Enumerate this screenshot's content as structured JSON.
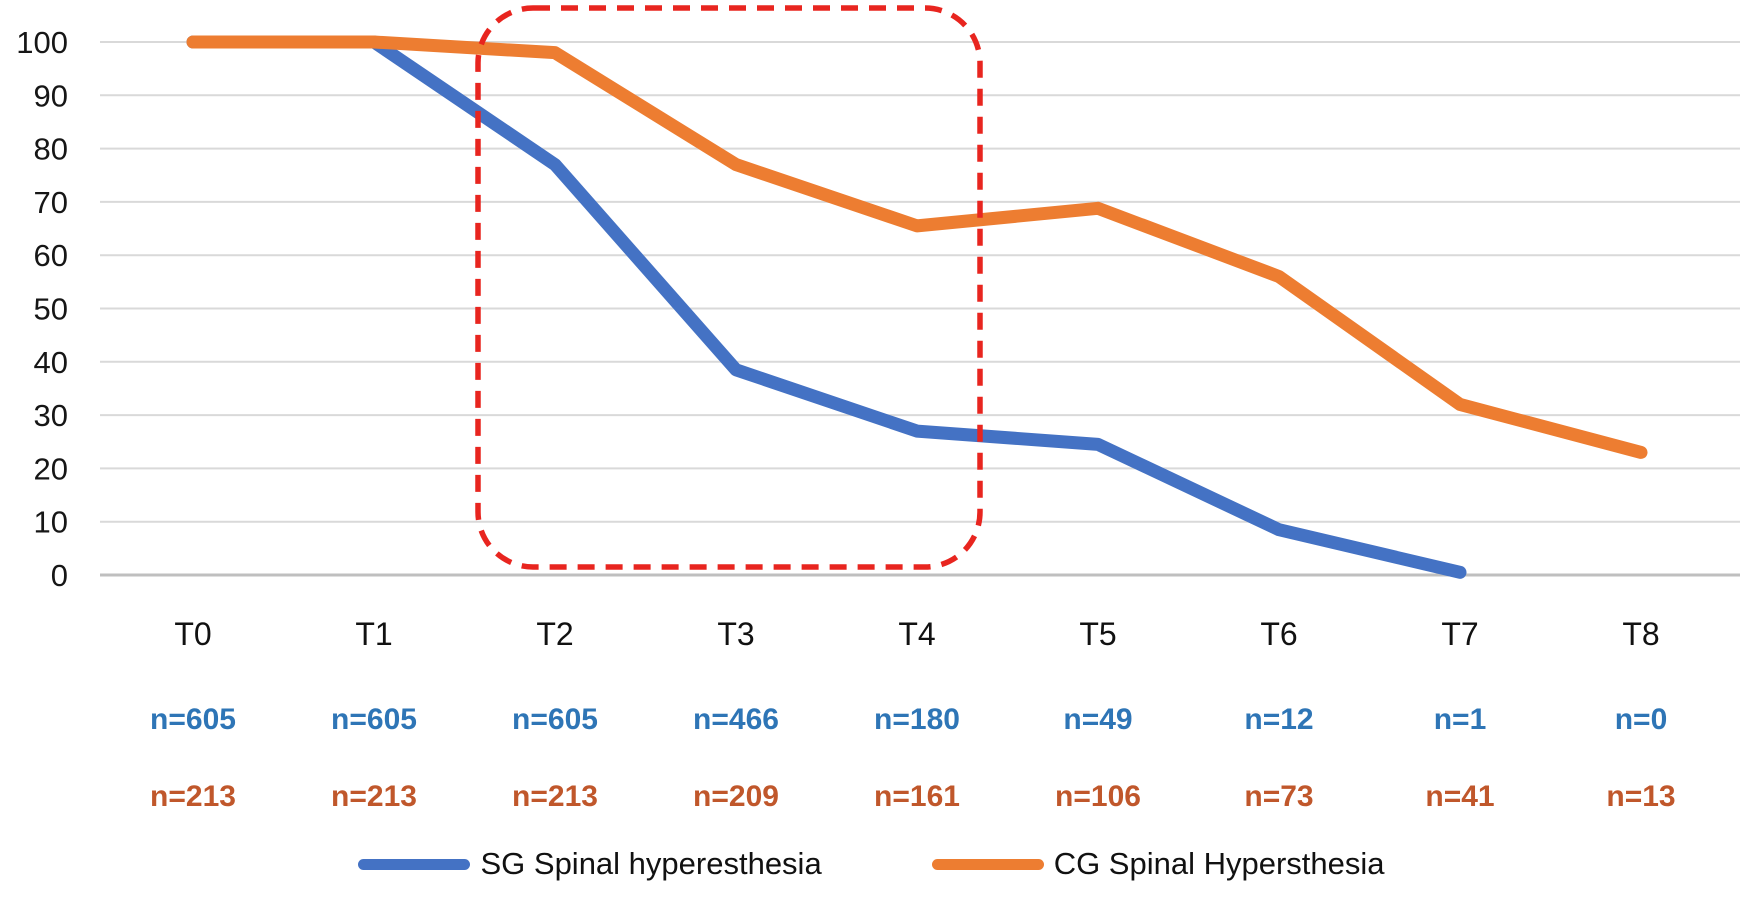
{
  "chart_data": {
    "type": "line",
    "categories": [
      "T0",
      "T1",
      "T2",
      "T3",
      "T4",
      "T5",
      "T6",
      "T7",
      "T8"
    ],
    "series": [
      {
        "name": "SG Spinal hyperesthesia",
        "color": "#4472C4",
        "values": [
          100,
          100,
          77,
          38.5,
          27,
          24.5,
          8.5,
          0.5,
          null
        ]
      },
      {
        "name": "CG Spinal Hypersthesia",
        "color": "#ED7D31",
        "values": [
          100,
          100,
          98,
          77,
          65.5,
          68.8,
          56,
          32,
          23
        ]
      }
    ],
    "ylim": [
      0,
      100
    ],
    "ytick_step": 10,
    "grid": true,
    "legend_position": "bottom",
    "annotations": [
      {
        "type": "dashed-box",
        "color": "#E8251F",
        "from_category": "T2",
        "to_category": "T4"
      }
    ],
    "counts": [
      {
        "series": "SG Spinal hyperesthesia",
        "color": "#2E75B6",
        "values": [
          "n=605",
          "n=605",
          "n=605",
          "n=466",
          "n=180",
          "n=49",
          "n=12",
          "n=1",
          "n=0"
        ]
      },
      {
        "series": "CG Spinal Hypersthesia",
        "color": "#C0572B",
        "values": [
          "n=213",
          "n=213",
          "n=213",
          "n=209",
          "n=161",
          "n=106",
          "n=73",
          "n=41",
          "n=13"
        ]
      }
    ]
  },
  "legend": {
    "items": [
      {
        "label": "SG Spinal hyperesthesia",
        "color": "#4472C4"
      },
      {
        "label": "CG Spinal Hypersthesia",
        "color": "#ED7D31"
      }
    ]
  },
  "colors": {
    "gridline": "#D9D9D9",
    "axis_line": "#BFBFBF",
    "highlight_box": "#E8251F",
    "tick_text": "#161616"
  }
}
